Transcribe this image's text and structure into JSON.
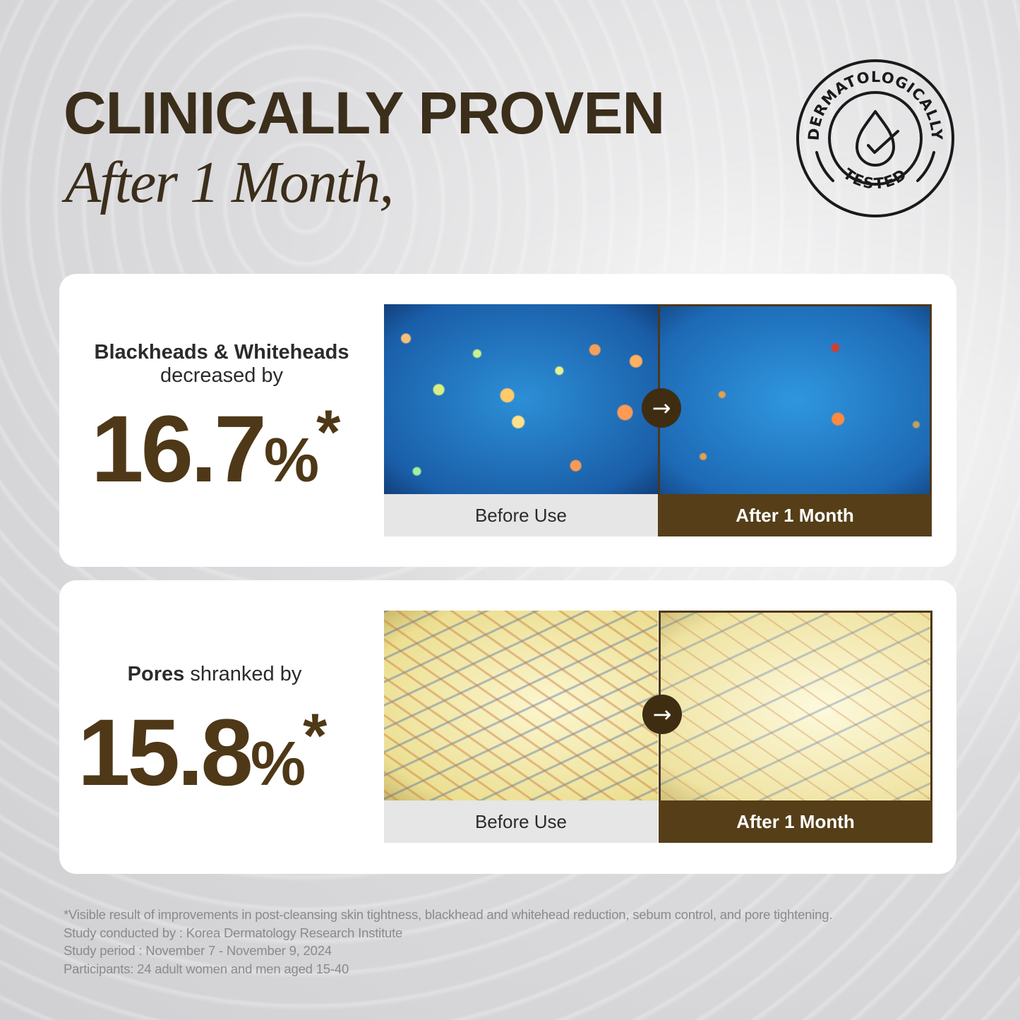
{
  "header": {
    "title": "CLINICALLY PROVEN",
    "subtitle": "After 1 Month,"
  },
  "badge": {
    "top_text": "DERMATOLOGICALLY",
    "bottom_text": "TESTED",
    "icon": "water-drop-check-icon"
  },
  "results": [
    {
      "label_bold": "Blackheads & Whiteheads",
      "label_rest": "decreased by",
      "value": "16.7",
      "unit": "%",
      "asterisk": "*",
      "before_label": "Before Use",
      "after_label": "After 1 Month"
    },
    {
      "label_bold": "Pores",
      "label_rest": " shranked by",
      "value": "15.8",
      "unit": "%",
      "asterisk": "*",
      "before_label": "Before Use",
      "after_label": "After 1 Month"
    }
  ],
  "footnotes": [
    "*Visible result of improvements in post-cleansing skin tightness, blackhead and whitehead reduction, sebum control, and pore tightening.",
    "Study conducted by :  Korea Dermatology Research Institute",
    "Study period : November 7 - November 9, 2024",
    "Participants: 24 adult women and men aged 15-40"
  ],
  "colors": {
    "brand_brown": "#553e18",
    "title_brown": "#3b2e1b",
    "before_bar": "#e6e6e6"
  }
}
